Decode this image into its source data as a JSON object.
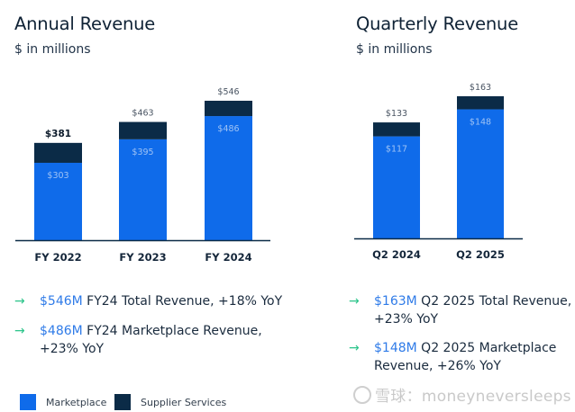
{
  "colors": {
    "marketplace": "#0f6bea",
    "supplier_services": "#0b2b47",
    "arrow": "#2bc48a",
    "highlight": "#2f7be8",
    "axis": "#0b2b47"
  },
  "chart_data": [
    {
      "type": "bar",
      "stacked": true,
      "title": "Annual Revenue",
      "subtitle": "$ in millions",
      "categories": [
        "FY 2022",
        "FY 2023",
        "FY 2024"
      ],
      "series": [
        {
          "name": "Marketplace",
          "values": [
            303,
            395,
            486
          ]
        },
        {
          "name": "Supplier Services",
          "values": [
            78,
            68,
            60
          ]
        }
      ],
      "totals": [
        381,
        463,
        546
      ],
      "total_labels": [
        "$381",
        "$463",
        "$546"
      ],
      "inner_labels": [
        "$303",
        "$395",
        "$486"
      ],
      "xlabel": "",
      "ylabel": "",
      "ylim": [
        0,
        600
      ],
      "grid": false
    },
    {
      "type": "bar",
      "stacked": true,
      "title": "Quarterly Revenue",
      "subtitle": "$ in millions",
      "categories": [
        "Q2 2024",
        "Q2 2025"
      ],
      "series": [
        {
          "name": "Marketplace",
          "values": [
            117,
            148
          ]
        },
        {
          "name": "Supplier Services",
          "values": [
            16,
            15
          ]
        }
      ],
      "totals": [
        133,
        163
      ],
      "total_labels": [
        "$133",
        "$163"
      ],
      "inner_labels": [
        "$117",
        "$148"
      ],
      "xlabel": "",
      "ylabel": "",
      "ylim": [
        0,
        180
      ],
      "grid": false
    }
  ],
  "annual": {
    "title": "Annual Revenue",
    "subtitle": "$ in millions",
    "bullets": [
      {
        "highlight": "$546M",
        "text": " FY24 Total Revenue, +18% YoY"
      },
      {
        "highlight": "$486M",
        "text": " FY24 Marketplace Revenue,",
        "text2": "+23% YoY"
      }
    ]
  },
  "quarterly": {
    "title": "Quarterly Revenue",
    "subtitle": "$ in millions",
    "bullets": [
      {
        "highlight": "$163M",
        "text": " Q2 2025 Total Revenue,",
        "text2": "+23% YoY"
      },
      {
        "highlight": "$148M",
        "text": " Q2 2025 Marketplace",
        "text2": "Revenue, +26% YoY"
      }
    ]
  },
  "arrow_glyph": "→",
  "legend": [
    {
      "label": "Marketplace",
      "color": "#0f6bea"
    },
    {
      "label": "Supplier Services",
      "color": "#0b2b47"
    }
  ],
  "watermark": "雪球：moneyneversleeps"
}
